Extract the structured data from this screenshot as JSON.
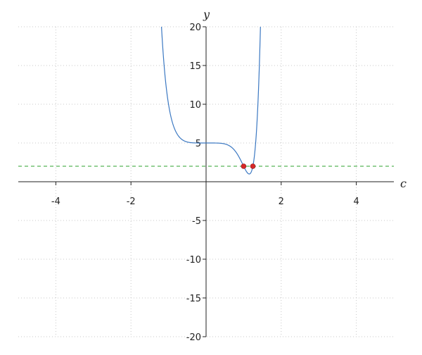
{
  "chart_data": {
    "type": "line",
    "title": "",
    "xlabel": "c",
    "ylabel": "y",
    "xlim": [
      -5,
      5
    ],
    "ylim": [
      -20,
      20
    ],
    "xticks": [
      -4,
      -2,
      2,
      4
    ],
    "yticks": [
      -20,
      -15,
      -10,
      -5,
      5,
      10,
      15,
      20
    ],
    "grid": true,
    "series": [
      {
        "kind": "curve",
        "expression": "y = c^10 - 4c^5 + 5",
        "color": "#3b78c2"
      },
      {
        "kind": "hline",
        "y": 2,
        "style": "dashed",
        "color": "#2ca02c"
      },
      {
        "kind": "points",
        "x": [
          1.0,
          1.2457
        ],
        "y": [
          2,
          2
        ],
        "color": "#d62728"
      }
    ]
  }
}
